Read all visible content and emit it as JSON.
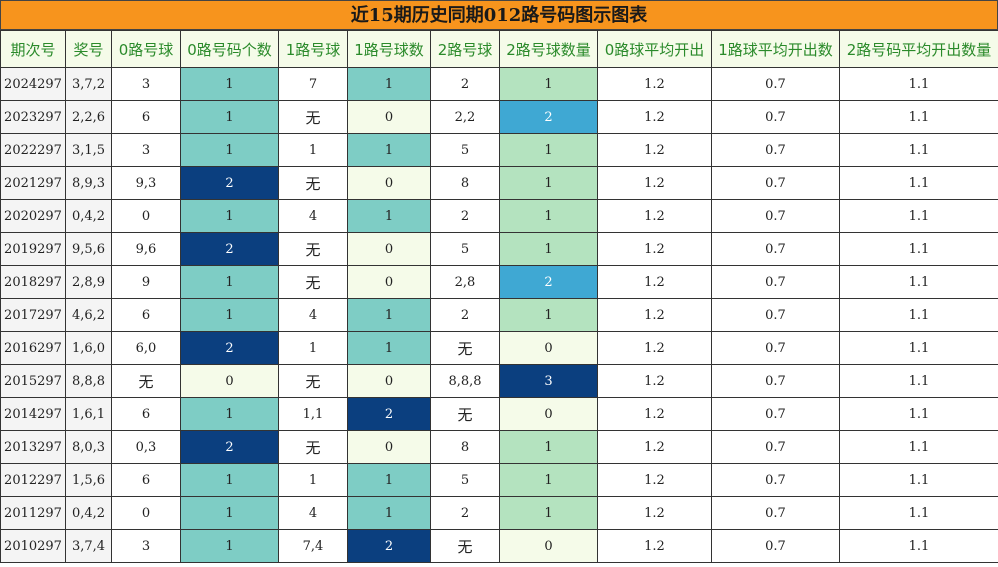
{
  "title": "近15期历史同期012路号码图示图表",
  "colors": {
    "title_bg": "#f7941d",
    "header_bg": "#f5fbe9",
    "header_text": "#2a8a2a",
    "count_1": "#7ecdc5",
    "count_2_dark": "#0b3f7f",
    "count_2_blue": "#3fa8d3",
    "count_3": "#0b3f7f",
    "route2_count_1": "#b4e3bf",
    "zero_bg": "#f5fbe9"
  },
  "chart_data": {
    "type": "table",
    "columns": [
      "期次号",
      "奖号",
      "0路号球",
      "0路号码个数",
      "1路号球",
      "1路号球数",
      "2路号球",
      "2路号球数量",
      "0路球平均开出",
      "1路球平均开出数",
      "2路号码平均开出数量"
    ],
    "rows": [
      [
        "2024297",
        "3,7,2",
        "3",
        "1",
        "7",
        "1",
        "2",
        "1",
        "1.2",
        "0.7",
        "1.1"
      ],
      [
        "2023297",
        "2,2,6",
        "6",
        "1",
        "无",
        "0",
        "2,2",
        "2",
        "1.2",
        "0.7",
        "1.1"
      ],
      [
        "2022297",
        "3,1,5",
        "3",
        "1",
        "1",
        "1",
        "5",
        "1",
        "1.2",
        "0.7",
        "1.1"
      ],
      [
        "2021297",
        "8,9,3",
        "9,3",
        "2",
        "无",
        "0",
        "8",
        "1",
        "1.2",
        "0.7",
        "1.1"
      ],
      [
        "2020297",
        "0,4,2",
        "0",
        "1",
        "4",
        "1",
        "2",
        "1",
        "1.2",
        "0.7",
        "1.1"
      ],
      [
        "2019297",
        "9,5,6",
        "9,6",
        "2",
        "无",
        "0",
        "5",
        "1",
        "1.2",
        "0.7",
        "1.1"
      ],
      [
        "2018297",
        "2,8,9",
        "9",
        "1",
        "无",
        "0",
        "2,8",
        "2",
        "1.2",
        "0.7",
        "1.1"
      ],
      [
        "2017297",
        "4,6,2",
        "6",
        "1",
        "4",
        "1",
        "2",
        "1",
        "1.2",
        "0.7",
        "1.1"
      ],
      [
        "2016297",
        "1,6,0",
        "6,0",
        "2",
        "1",
        "1",
        "无",
        "0",
        "1.2",
        "0.7",
        "1.1"
      ],
      [
        "2015297",
        "8,8,8",
        "无",
        "0",
        "无",
        "0",
        "8,8,8",
        "3",
        "1.2",
        "0.7",
        "1.1"
      ],
      [
        "2014297",
        "1,6,1",
        "6",
        "1",
        "1,1",
        "2",
        "无",
        "0",
        "1.2",
        "0.7",
        "1.1"
      ],
      [
        "2013297",
        "8,0,3",
        "0,3",
        "2",
        "无",
        "0",
        "8",
        "1",
        "1.2",
        "0.7",
        "1.1"
      ],
      [
        "2012297",
        "1,5,6",
        "6",
        "1",
        "1",
        "1",
        "5",
        "1",
        "1.2",
        "0.7",
        "1.1"
      ],
      [
        "2011297",
        "0,4,2",
        "0",
        "1",
        "4",
        "1",
        "2",
        "1",
        "1.2",
        "0.7",
        "1.1"
      ],
      [
        "2010297",
        "3,7,4",
        "3",
        "1",
        "7,4",
        "2",
        "无",
        "0",
        "1.2",
        "0.7",
        "1.1"
      ]
    ]
  }
}
